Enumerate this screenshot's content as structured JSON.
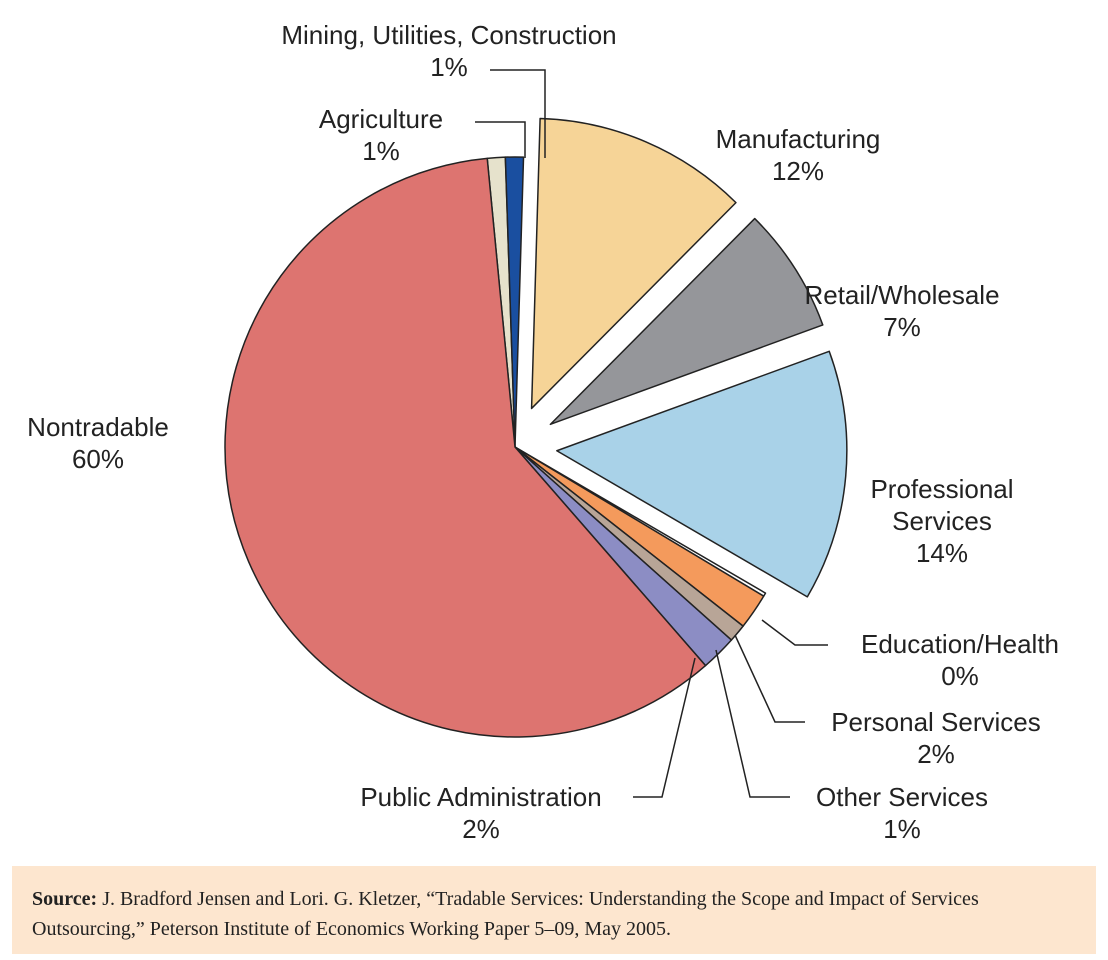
{
  "chart_data": {
    "type": "pie",
    "slices": [
      {
        "name": "Agriculture",
        "value_label": "1%",
        "value": 1,
        "color": "#e6e2cc",
        "exploded": false
      },
      {
        "name": "Mining, Utilities, Construction",
        "value_label": "1%",
        "value": 1,
        "color": "#1a4fa0",
        "exploded": false
      },
      {
        "name": "Manufacturing",
        "value_label": "12%",
        "value": 12,
        "color": "#f6d497",
        "exploded": true
      },
      {
        "name": "Retail/Wholesale",
        "value_label": "7%",
        "value": 7,
        "color": "#95969a",
        "exploded": true
      },
      {
        "name": "Professional Services",
        "value_label": "14%",
        "value": 14,
        "color": "#a9d2e8",
        "exploded": true
      },
      {
        "name": "Education/Health",
        "value_label": "0%",
        "value": 0,
        "color": "#ffffff",
        "exploded": false
      },
      {
        "name": "Personal Services",
        "value_label": "2%",
        "value": 2,
        "color": "#f49a5c",
        "exploded": false
      },
      {
        "name": "Other Services",
        "value_label": "1%",
        "value": 1,
        "color": "#b8a597",
        "exploded": false
      },
      {
        "name": "Public Administration",
        "value_label": "2%",
        "value": 2,
        "color": "#8c8dc4",
        "exploded": false
      },
      {
        "name": "Nontradable",
        "value_label": "60%",
        "value": 60,
        "color": "#dd7470",
        "exploded": false
      }
    ],
    "label_lines": {
      "Mining, Utilities, Construction": [
        "Mining, Utilities, Construction",
        "1%"
      ],
      "Agriculture": [
        "Agriculture",
        "1%"
      ],
      "Manufacturing": [
        "Manufacturing",
        "12%"
      ],
      "Retail/Wholesale": [
        "Retail/Wholesale",
        "7%"
      ],
      "Nontradable": [
        "Nontradable",
        "60%"
      ],
      "Professional Services": [
        "Professional",
        "Services",
        "14%"
      ],
      "Education/Health": [
        "Education/Health",
        "0%"
      ],
      "Personal Services": [
        "Personal Services",
        "2%"
      ],
      "Public Administration": [
        "Public Administration",
        "2%"
      ],
      "Other Services": [
        "Other Services",
        "1%"
      ]
    }
  },
  "source": {
    "label": "Source:",
    "text": " J. Bradford Jensen and Lori. G. Kletzer, “Tradable Services: Understanding the Scope and Impact of Services Outsourcing,” Peterson Institute of Economics Working Paper 5–09, May 2005."
  }
}
